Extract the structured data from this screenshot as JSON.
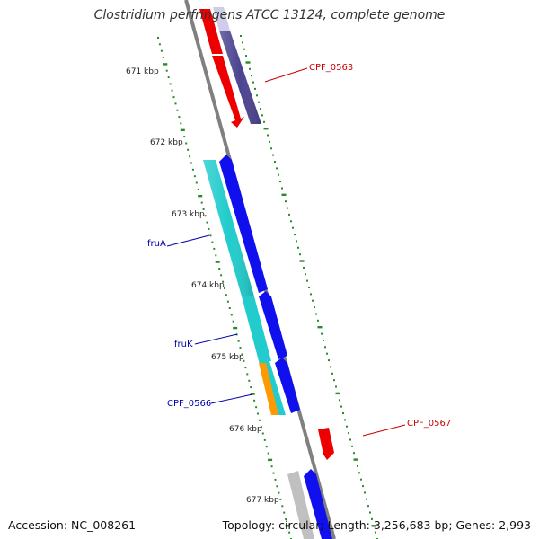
{
  "title": "Clostridium perfringens ATCC 13124, complete genome",
  "footer": {
    "accession": "Accession: NC_008261",
    "summary": "Topology: circular; Length: 3,256,683 bp; Genes: 2,993"
  },
  "ruler_ticks": [
    "671 kbp",
    "672 kbp",
    "673 kbp",
    "674 kbp",
    "675 kbp",
    "676 kbp",
    "677 kbp"
  ],
  "gene_labels": [
    {
      "text": "CPF_0563",
      "color": "#cc0000"
    },
    {
      "text": "fruA",
      "color": "#0000aa"
    },
    {
      "text": "fruK",
      "color": "#0000aa"
    },
    {
      "text": "CPF_0566",
      "color": "#0000aa"
    },
    {
      "text": "CPF_0567",
      "color": "#cc0000"
    }
  ],
  "colors": {
    "backbone": "#808080",
    "tick": "#2a8a2a",
    "red_feature": "#ee0000",
    "navy_feature": "#4b4490",
    "cyan_feature": "#22cccc",
    "blue_feature": "#1010ee",
    "orange_feature": "#ff9900",
    "grey_feature": "#c0c0c0"
  }
}
